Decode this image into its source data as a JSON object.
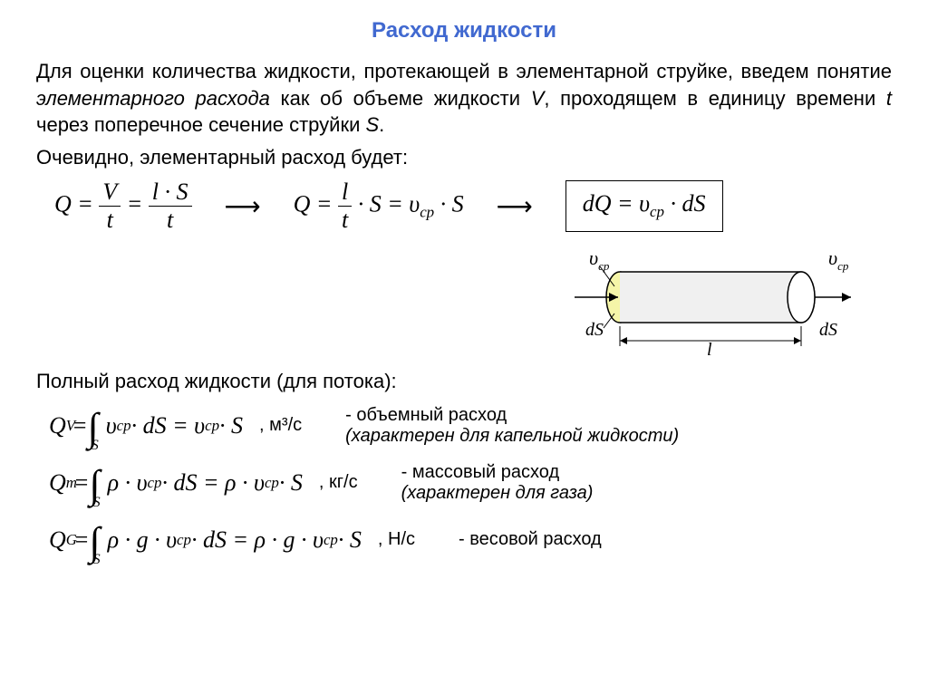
{
  "title": "Расход жидкости",
  "intro_html": "Для оценки количества жидкости, протекающей в элементарной струйке, введем понятие <span class='ital'>элементарного расхода</span> как об объеме жидкости <span class='ital'>V</span>, проходящем в единицу времени <span class='ital'>t</span> через поперечное сечение струйки <span class='ital'>S</span>.",
  "obvious": "Очевидно, элементарный расход будет:",
  "eq1": {
    "Q": "Q",
    "V": "V",
    "t": "t",
    "l": "l",
    "S": "S",
    "eq": "=",
    "dot": "·"
  },
  "eq2_text": "· S = υ",
  "eq3_text": "dQ = υ",
  "dS": "· dS",
  "cp": "cp",
  "diagram": {
    "v_label": "υ",
    "dS": "dS",
    "l": "l",
    "fill_color": "#f5f5a8",
    "body_color": "#e8e8e8",
    "stroke": "#000000"
  },
  "full_flow_title": "Полный расход жидкости (для потока):",
  "rows": [
    {
      "lhs_sub": "V",
      "integrand": "υ",
      "rhs": "= υ",
      "tail": " · S",
      "unit": ", м³/с",
      "desc": "- объемный расход",
      "note": "(характерен для капельной жидкости)"
    },
    {
      "lhs_sub": "m",
      "integrand": "ρ · υ",
      "rhs": "= ρ · υ",
      "tail": " · S",
      "unit": ", кг/с",
      "desc": "-   массовый расход",
      "note": "(характерен для газа)"
    },
    {
      "lhs_sub": "G",
      "integrand": "ρ · g · υ",
      "rhs": "= ρ · g · υ",
      "tail": " · S",
      "unit": ", Н/с",
      "desc": "- весовой расход",
      "note": ""
    }
  ]
}
